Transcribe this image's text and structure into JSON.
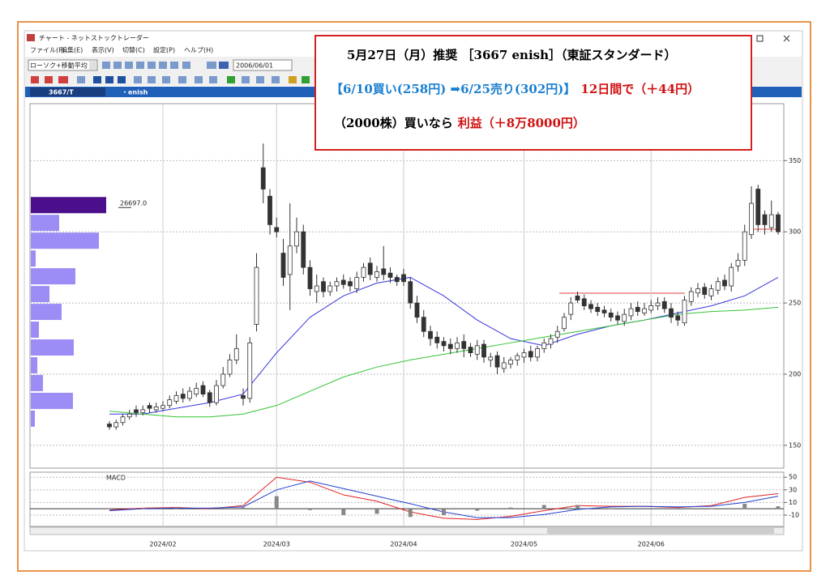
{
  "window": {
    "title": "チャート - ネットストックトレーダー",
    "menu": [
      "ファイル(F)",
      "編集(E)",
      "表示(V)",
      "切替(C)",
      "設定(P)",
      "ヘルプ(H)"
    ],
    "chart_type": "ローソク+移動平均",
    "start_date": "2006/06/01",
    "symbol": "3667/T",
    "name": "・enish"
  },
  "annotation": {
    "lines": [
      [
        {
          "text": "5月27日（月）推奨 ［3667 enish］（東証スタンダード）",
          "color": "#000000"
        }
      ],
      [
        {
          "text": "【6/10買い(258円) ➡6/25売り(302円)】",
          "color": "#1a7fd0"
        },
        {
          "text": "12日間で（＋44円）",
          "color": "#d01010"
        }
      ],
      [
        {
          "text": "（2000株）買いなら",
          "color": "#000000"
        },
        {
          "text": "利益（＋8万8000円）",
          "color": "#d01010"
        }
      ]
    ]
  },
  "chart_data": [
    {
      "type": "candlestick",
      "categories": [
        null,
        null,
        null,
        null,
        null,
        null,
        null,
        null,
        "2024/02",
        null,
        null,
        null,
        null,
        null,
        null,
        null,
        null,
        null,
        null,
        null,
        null,
        null,
        null,
        null,
        null,
        "2024/03",
        null,
        null,
        null,
        null,
        null,
        null,
        null,
        null,
        null,
        null,
        null,
        null,
        null,
        null,
        null,
        null,
        null,
        null,
        "2024/04",
        null,
        null,
        null,
        null,
        null,
        null,
        null,
        null,
        null,
        null,
        null,
        null,
        null,
        null,
        null,
        null,
        null,
        "2024/05",
        null,
        null,
        null,
        null,
        null,
        null,
        null,
        null,
        null,
        null,
        null,
        null,
        null,
        null,
        null,
        null,
        null,
        null,
        "2024/06",
        null,
        null,
        null,
        null,
        null,
        null,
        null,
        null,
        null,
        null,
        null,
        null,
        null,
        null,
        null,
        null,
        null,
        null,
        null
      ],
      "open": [
        165,
        163,
        166,
        170,
        175,
        173,
        178,
        175,
        176,
        178,
        181,
        186,
        183,
        186,
        192,
        187,
        180,
        192,
        200,
        210,
        185,
        183,
        235,
        345,
        325,
        303,
        285,
        270,
        290,
        300,
        275,
        258,
        265,
        258,
        262,
        266,
        265,
        260,
        268,
        278,
        268,
        274,
        271,
        268,
        270,
        265,
        250,
        240,
        230,
        226,
        223,
        221,
        218,
        223,
        219,
        214,
        221,
        210,
        213,
        204,
        207,
        210,
        212,
        216,
        212,
        218,
        221,
        226,
        232,
        242,
        255,
        253,
        249,
        247,
        245,
        243,
        241,
        237,
        241,
        247,
        243,
        245,
        248,
        251,
        246,
        241,
        236,
        251,
        257,
        261,
        255,
        259,
        266,
        262,
        276,
        280,
        298,
        330,
        312,
        303,
        312
      ],
      "high": [
        167,
        168,
        172,
        175,
        178,
        178,
        180,
        180,
        181,
        185,
        188,
        190,
        191,
        194,
        195,
        189,
        196,
        205,
        214,
        228,
        190,
        226,
        285,
        362,
        330,
        310,
        295,
        320,
        310,
        305,
        280,
        270,
        268,
        265,
        268,
        270,
        268,
        272,
        278,
        282,
        276,
        290,
        275,
        270,
        274,
        268,
        255,
        245,
        234,
        230,
        226,
        225,
        226,
        228,
        222,
        224,
        224,
        215,
        216,
        212,
        212,
        215,
        218,
        220,
        220,
        225,
        228,
        234,
        243,
        254,
        258,
        256,
        252,
        250,
        248,
        246,
        244,
        246,
        250,
        251,
        250,
        252,
        254,
        254,
        250,
        244,
        255,
        261,
        264,
        264,
        263,
        268,
        270,
        278,
        285,
        305,
        332,
        333,
        315,
        322,
        314
      ],
      "low": [
        161,
        161,
        164,
        168,
        170,
        171,
        173,
        173,
        174,
        176,
        179,
        180,
        181,
        184,
        184,
        177,
        178,
        190,
        198,
        207,
        178,
        180,
        230,
        320,
        298,
        296,
        262,
        245,
        285,
        270,
        255,
        250,
        254,
        255,
        258,
        260,
        258,
        257,
        265,
        266,
        265,
        266,
        264,
        262,
        262,
        246,
        236,
        226,
        220,
        218,
        216,
        214,
        215,
        212,
        212,
        210,
        208,
        205,
        200,
        201,
        204,
        206,
        208,
        209,
        209,
        215,
        218,
        222,
        230,
        238,
        250,
        245,
        243,
        241,
        240,
        237,
        235,
        234,
        238,
        241,
        241,
        243,
        245,
        243,
        236,
        234,
        234,
        248,
        254,
        253,
        252,
        256,
        259,
        258,
        272,
        276,
        295,
        300,
        298,
        300,
        298
      ],
      "close": [
        163,
        166,
        170,
        172,
        173,
        175,
        176,
        177,
        178,
        182,
        185,
        183,
        188,
        190,
        186,
        180,
        192,
        200,
        210,
        218,
        183,
        222,
        275,
        330,
        305,
        300,
        268,
        290,
        300,
        275,
        260,
        262,
        258,
        262,
        265,
        263,
        262,
        268,
        275,
        270,
        272,
        270,
        268,
        265,
        265,
        250,
        240,
        230,
        225,
        222,
        220,
        218,
        222,
        218,
        215,
        220,
        212,
        212,
        205,
        208,
        210,
        213,
        215,
        212,
        218,
        222,
        225,
        230,
        240,
        250,
        252,
        248,
        246,
        244,
        243,
        240,
        238,
        242,
        246,
        244,
        246,
        248,
        250,
        246,
        240,
        238,
        252,
        258,
        260,
        256,
        260,
        265,
        262,
        275,
        280,
        300,
        320,
        305,
        305,
        312,
        300
      ],
      "up_color": "#ffffff",
      "down_color": "#333333",
      "series": [
        {
          "color": "#3535e0",
          "x": [
            0,
            5,
            10,
            15,
            20,
            25,
            30,
            35,
            40,
            45,
            50,
            55,
            60,
            65,
            70,
            75,
            80,
            85,
            90,
            95,
            100
          ],
          "values": [
            172,
            172,
            176,
            180,
            186,
            215,
            240,
            255,
            264,
            268,
            255,
            238,
            225,
            220,
            228,
            234,
            238,
            243,
            248,
            255,
            268
          ]
        },
        {
          "color": "#33c433",
          "x": [
            0,
            5,
            10,
            15,
            20,
            25,
            30,
            35,
            40,
            45,
            50,
            55,
            60,
            65,
            70,
            75,
            80,
            85,
            90,
            95,
            100
          ],
          "values": [
            174,
            172,
            170,
            170,
            172,
            178,
            188,
            198,
            205,
            210,
            214,
            218,
            222,
            226,
            230,
            234,
            238,
            242,
            244,
            245,
            247
          ]
        }
      ],
      "ylim": [
        134,
        390
      ],
      "yticks": [
        150,
        200,
        250,
        300,
        350
      ],
      "grid": true
    },
    {
      "type": "macd",
      "title": "MACD",
      "x": [
        0,
        5,
        10,
        15,
        20,
        25,
        30,
        35,
        40,
        45,
        50,
        55,
        60,
        65,
        70,
        75,
        80,
        85,
        90,
        95,
        100
      ],
      "xlim": [
        0,
        100
      ],
      "series": [
        {
          "type": "line",
          "color": "#e02020",
          "values": [
            -2,
            1,
            2,
            0,
            5,
            50,
            42,
            22,
            12,
            -5,
            -15,
            -17,
            -12,
            -3,
            5,
            4,
            4,
            2,
            5,
            18,
            24
          ]
        },
        {
          "type": "line",
          "color": "#2040d0",
          "values": [
            -3,
            0,
            1,
            1,
            3,
            30,
            44,
            32,
            20,
            8,
            -5,
            -14,
            -14,
            -9,
            -1,
            3,
            4,
            3,
            4,
            10,
            20
          ]
        },
        {
          "type": "bar",
          "color": "#888888",
          "values": [
            1,
            1,
            1,
            -1,
            2,
            20,
            -2,
            -10,
            -8,
            -13,
            -10,
            -3,
            2,
            6,
            6,
            1,
            0,
            -1,
            1,
            8,
            4
          ]
        }
      ],
      "ylim": [
        -28,
        58
      ],
      "yticks": [
        50,
        30,
        10,
        -10
      ],
      "grid": true
    },
    {
      "type": "histogram",
      "orientation": "horizontal",
      "bins": [
        162.5,
        175,
        187.5,
        200,
        212.5,
        225,
        237.5,
        250,
        262.5,
        275,
        287.5,
        300,
        312.5,
        325
      ],
      "values": [
        1435,
        14927,
        4306,
        2297,
        15214,
        2871,
        10908,
        6602,
        15789,
        1722,
        24113,
        10047,
        26697
      ],
      "value_labels": [
        null,
        null,
        null,
        null,
        null,
        null,
        null,
        null,
        null,
        null,
        null,
        null,
        "26697.0"
      ],
      "color": "#9c8cf5",
      "peak_color": "#4b0f8c"
    }
  ]
}
